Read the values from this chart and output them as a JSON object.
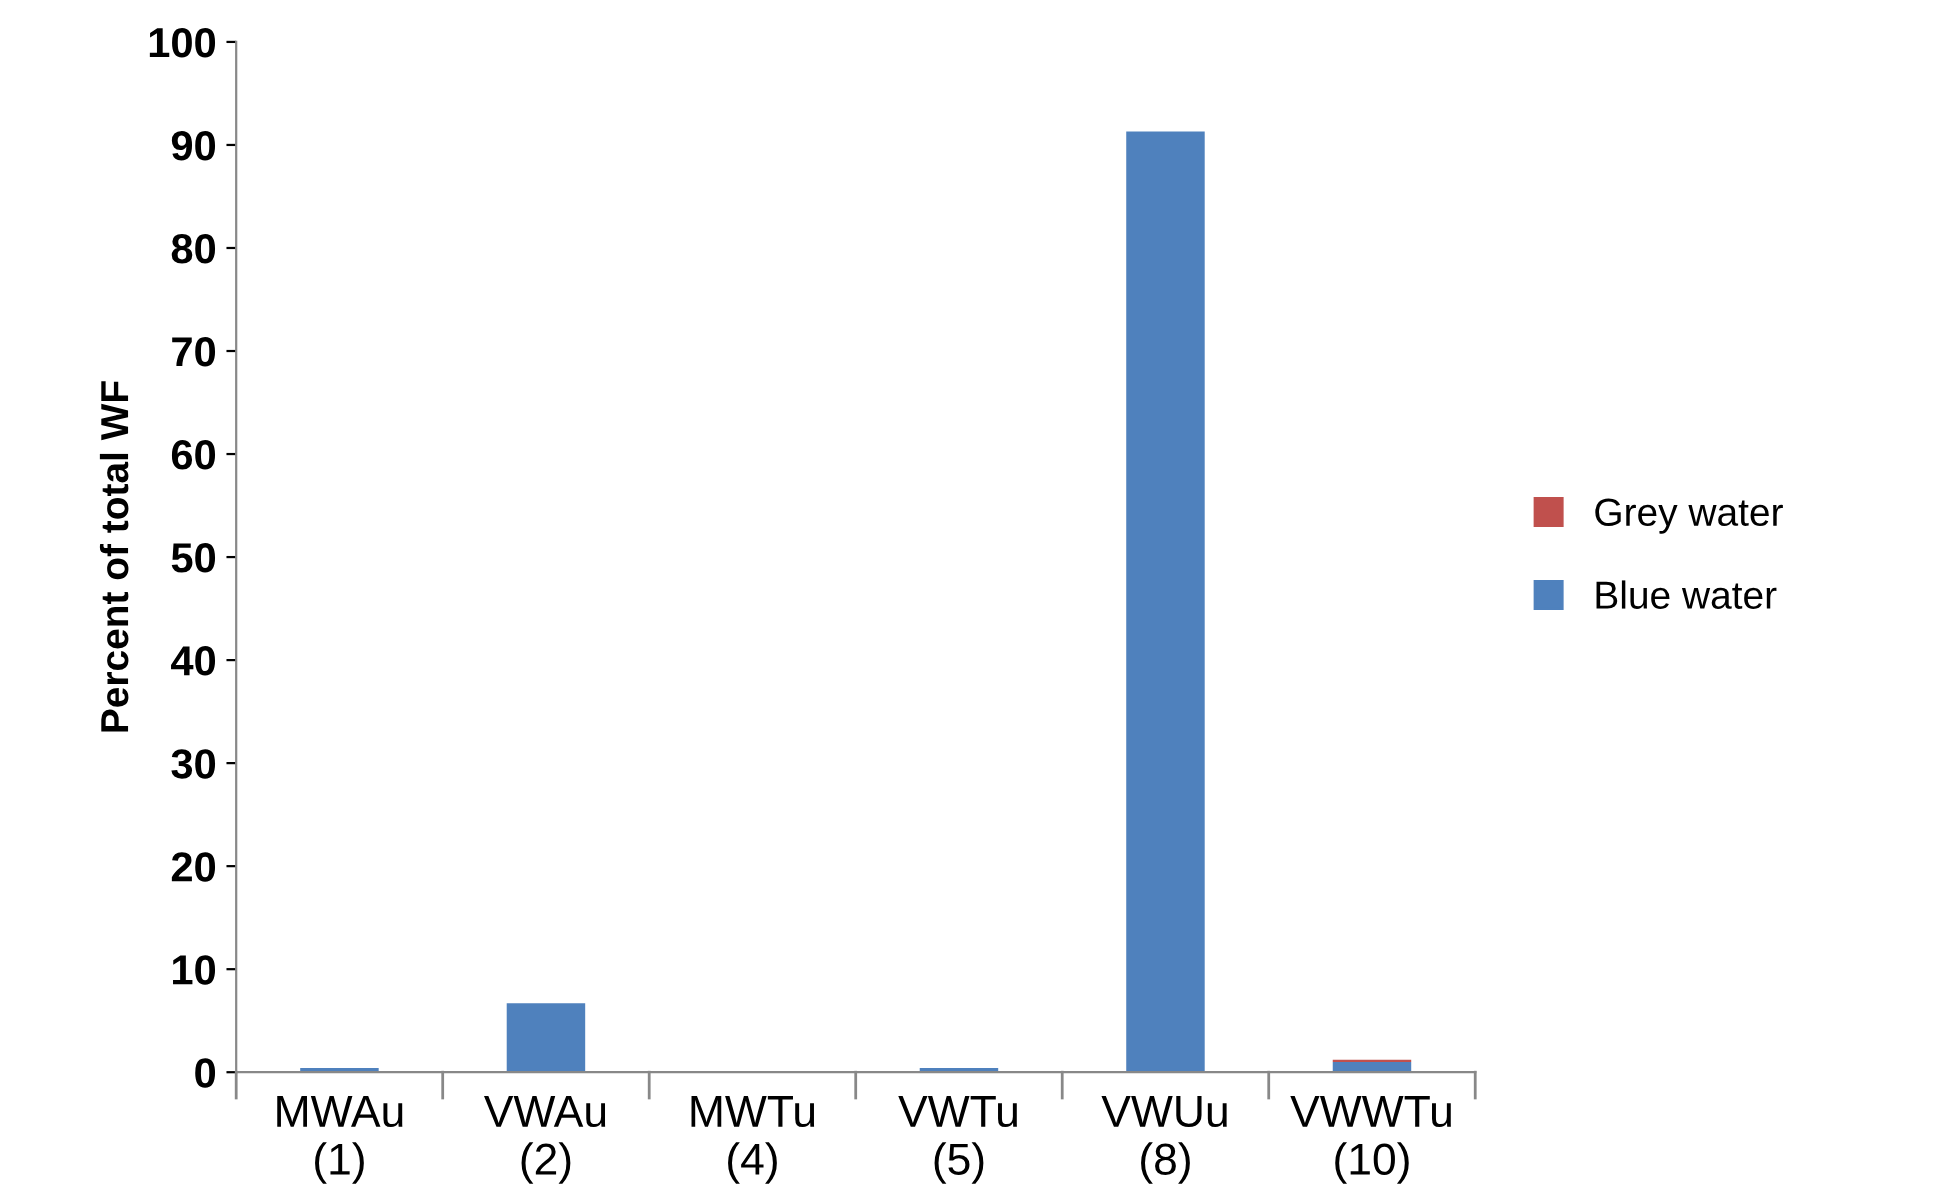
{
  "chart_data": {
    "type": "bar",
    "stacked": true,
    "ylabel": "Percent of total WF",
    "categories": [
      "MWAu\n(1)",
      "VWAu\n(2)",
      "MWTu\n(4)",
      "VWTu\n(5)",
      "VWUu\n(8)",
      "VWWTu\n(10)"
    ],
    "series": [
      {
        "name": "Blue water",
        "color": "#4f81bd",
        "values": [
          0.4,
          6.7,
          0,
          0.4,
          91.3,
          1.0
        ]
      },
      {
        "name": "Grey water",
        "color": "#c0504d",
        "values": [
          0,
          0,
          0,
          0,
          0,
          0.2
        ]
      }
    ],
    "ylim": [
      0,
      100
    ],
    "yticks": [
      0,
      10,
      20,
      30,
      40,
      50,
      60,
      70,
      80,
      90,
      100
    ],
    "grid": false,
    "legend": "right"
  }
}
